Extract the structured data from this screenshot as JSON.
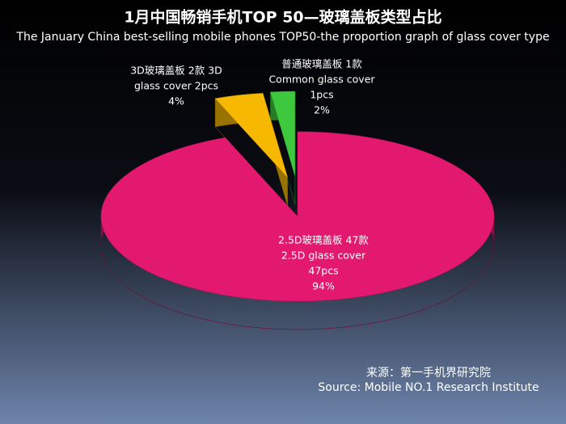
{
  "chart_data": {
    "type": "pie",
    "title": "1月中国畅销手机TOP 50—玻璃盖板类型占比",
    "subtitle": "The January China best-selling mobile phones TOP50-the proportion graph of glass cover type",
    "categories": [
      "2.5D玻璃盖板 47款",
      "3D玻璃盖板 2款 3D",
      "普通玻璃盖板 1款"
    ],
    "label_lines": [
      [
        "2.5D glass cover",
        "47pcs"
      ],
      [
        "glass cover 2pcs"
      ],
      [
        "Common glass cover",
        "1pcs"
      ]
    ],
    "values": [
      94,
      4,
      2
    ],
    "value_labels": [
      "94%",
      "4%",
      "2%"
    ],
    "colors": [
      "#e2196f",
      "#f6b800",
      "#3dc83d"
    ],
    "source_cn": "来源：第一手机界研究院",
    "source_en": "Source: Mobile NO.1 Research Institute"
  }
}
